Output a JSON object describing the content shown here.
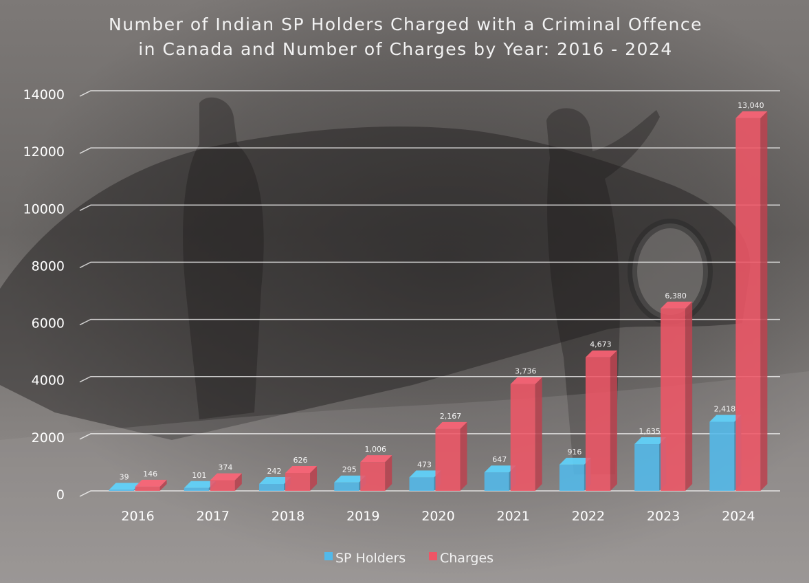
{
  "chart_data": {
    "type": "bar",
    "title_lines": [
      "Number of Indian SP Holders Charged with a Criminal Offence",
      "in Canada and Number of Charges by Year: 2016 - 2024"
    ],
    "categories": [
      "2016",
      "2017",
      "2018",
      "2019",
      "2020",
      "2021",
      "2022",
      "2023",
      "2024"
    ],
    "series": [
      {
        "name": "SP Holders",
        "color": "#52b9ea",
        "values": [
          39,
          101,
          242,
          295,
          473,
          647,
          916,
          1635,
          2418
        ],
        "labels": [
          "39",
          "101",
          "242",
          "295",
          "473",
          "647",
          "916",
          "1,635",
          "2,418"
        ]
      },
      {
        "name": "Charges",
        "color": "#ee5666",
        "values": [
          146,
          374,
          626,
          1006,
          2167,
          3736,
          4673,
          6380,
          13040
        ],
        "labels": [
          "146",
          "374",
          "626",
          "1,006",
          "2,167",
          "3,736",
          "4,673",
          "6,380",
          "13,040"
        ]
      }
    ],
    "ylim": [
      0,
      14000
    ],
    "yticks": [
      "0",
      "2000",
      "4000",
      "6000",
      "8000",
      "10000",
      "12000",
      "14000"
    ],
    "grid": true,
    "legend_position": "bottom",
    "style": "3d-column, over dark photographic background"
  }
}
